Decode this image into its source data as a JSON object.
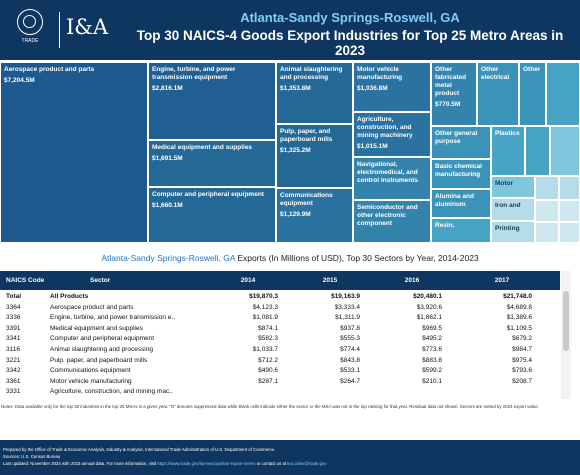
{
  "header": {
    "logo_text": "TRADE",
    "brand": "I&A",
    "title": "Atlanta-Sandy Springs-Roswell, GA",
    "subtitle": "Top 30 NAICS-4 Goods Export Industries for Top 25 Metro Areas in 2023"
  },
  "treemap": {
    "cells": [
      {
        "label": "Aerospace product and parts",
        "value": "$7,204.5M"
      },
      {
        "label": "Engine, turbine, and power transmission equipment",
        "value": "$2,816.1M"
      },
      {
        "label": "Medical equipment and supplies",
        "value": "$1,691.5M"
      },
      {
        "label": "Computer and peripheral equipment",
        "value": "$1,660.1M"
      },
      {
        "label": "Animal slaughtering and processing",
        "value": "$1,353.8M"
      },
      {
        "label": "Pulp, paper, and paperboard mills",
        "value": "$1,325.2M"
      },
      {
        "label": "Communications equipment",
        "value": "$1,129.9M"
      },
      {
        "label": "Motor vehicle manufacturing",
        "value": "$1,036.8M"
      },
      {
        "label": "Agriculture, construction, and mining machinery",
        "value": "$1,015.1M"
      },
      {
        "label": "Navigational, electromedical, and control instruments",
        "value": ""
      },
      {
        "label": "Semiconductor and other electronic component",
        "value": ""
      },
      {
        "label": "Other fabricated metal product",
        "value": "$770.5M"
      },
      {
        "label": "Other general purpose",
        "value": ""
      },
      {
        "label": "Basic chemical manufacturing",
        "value": ""
      },
      {
        "label": "Alumina and aluminum",
        "value": ""
      },
      {
        "label": "Resin,",
        "value": ""
      },
      {
        "label": "Other electrical",
        "value": ""
      },
      {
        "label": "Other",
        "value": ""
      },
      {
        "label": "Plastics",
        "value": ""
      },
      {
        "label": "Motor",
        "value": ""
      },
      {
        "label": "Iron and",
        "value": ""
      },
      {
        "label": "Printing",
        "value": ""
      }
    ]
  },
  "table": {
    "title_city": "Atlanta-Sandy Springs-Roswell, GA",
    "title_rest": " Exports (In Millions of USD), Top 30 Sectors by Year, 2014-2023",
    "headers": {
      "code": "NAICS Code",
      "sector": "Sector",
      "y2014": "2014",
      "y2015": "2015",
      "y2016": "2016",
      "y2017": "2017"
    },
    "rows": [
      {
        "code": "Total",
        "sector": "All Products",
        "y2014": "$19,870.3",
        "y2015": "$19,163.9",
        "y2016": "$20,480.1",
        "y2017": "$21,748.0"
      },
      {
        "code": "3364",
        "sector": "Aerospace product and parts",
        "y2014": "$4,123.3",
        "y2015": "$3,333.4",
        "y2016": "$3,920.6",
        "y2017": "$4,689.8"
      },
      {
        "code": "3336",
        "sector": "Engine, turbine, and power transmission e..",
        "y2014": "$1,081.9",
        "y2015": "$1,311.9",
        "y2016": "$1,862.1",
        "y2017": "$1,389.6"
      },
      {
        "code": "3391",
        "sector": "Medical equipment and supplies",
        "y2014": "$874.1",
        "y2015": "$937.8",
        "y2016": "$969.5",
        "y2017": "$1,109.5"
      },
      {
        "code": "3341",
        "sector": "Computer and peripheral equipment",
        "y2014": "$582.3",
        "y2015": "$555.3",
        "y2016": "$495.2",
        "y2017": "$679.2"
      },
      {
        "code": "3116",
        "sector": "Animal slaughtering and processing",
        "y2014": "$1,033.7",
        "y2015": "$774.4",
        "y2016": "$773.6",
        "y2017": "$984.7"
      },
      {
        "code": "3221",
        "sector": "Pulp, paper, and paperboard mills",
        "y2014": "$712.2",
        "y2015": "$843.8",
        "y2016": "$883.8",
        "y2017": "$975.4"
      },
      {
        "code": "3342",
        "sector": "Communications equipment",
        "y2014": "$490.6",
        "y2015": "$533.1",
        "y2016": "$599.2",
        "y2017": "$793.6"
      },
      {
        "code": "3361",
        "sector": "Motor vehicle manufacturing",
        "y2014": "$287.1",
        "y2015": "$264.7",
        "y2016": "$210.1",
        "y2017": "$208.7"
      },
      {
        "code": "3331",
        "sector": "Agriculture, construction, and mining mac..",
        "y2014": "",
        "y2015": "",
        "y2016": "",
        "y2017": ""
      }
    ]
  },
  "notes": "Notes: Data available only for the top 30 industries in the top 25 MSAs in a given year. \"D\" denotes suppressed data while blank cells indicate either the sector or the MSA was not in the top ranking for that year. Residual data not shown. Sectors are sorted by 2023 export value.",
  "footer": {
    "line1": "Prepared by the Office of Trade & Economic Analysis, Industry & Analysis, International Trade Administration of U.S. Department of Commerce.",
    "line2": "Sources: U.S. Census Bureau",
    "line3_pre": "Last updated: November 2024 with 2023 annual data. For more information, visit ",
    "line3_link": "https://www.trade.gov/ita-metropolitan-export-series",
    "line3_mid": " or contact us at ",
    "line3_email": "tea.cities@trade.gov"
  }
}
